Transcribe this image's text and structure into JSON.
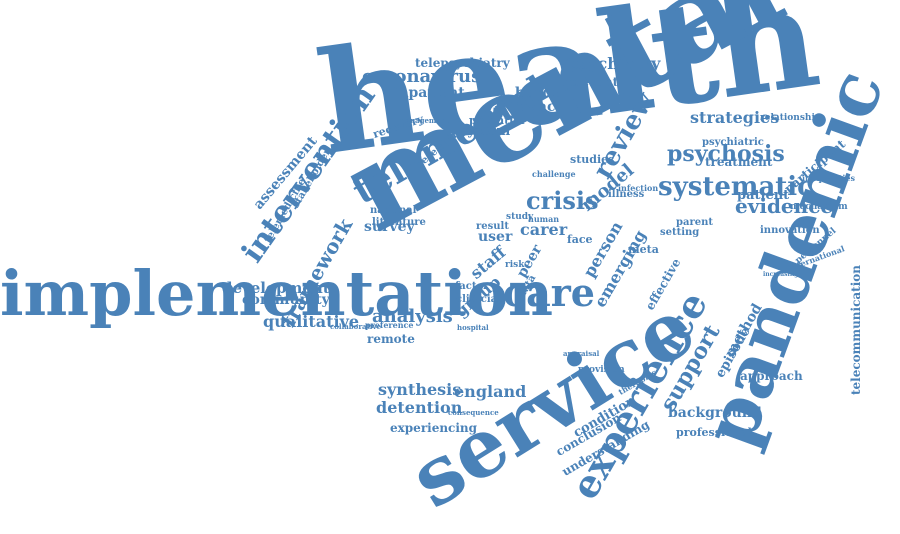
{
  "color": "#4a82b8",
  "words": [
    "health",
    "mental",
    "implementation",
    "service",
    "pandemic",
    "care",
    "systematic",
    "telemental",
    "intervention",
    "psychosis",
    "experience",
    "crisis",
    "evidence",
    "coronavirus",
    "psychiatry",
    "review",
    "support",
    "strategies",
    "framework",
    "development",
    "qualitative",
    "analysis",
    "synthesis",
    "england",
    "detention",
    "experiencing",
    "community",
    "remote",
    "telepsychiatry",
    "inpatient",
    "burden",
    "relevant",
    "impact",
    "potential",
    "system",
    "recovery",
    "research",
    "treatment",
    "participant",
    "telecommunication",
    "patient",
    "mechanism",
    "innovation",
    "personnel",
    "approach",
    "method",
    "episode",
    "background",
    "professional",
    "condition",
    "conclusion",
    "understanding",
    "emerging",
    "effective",
    "peer",
    "carer",
    "person",
    "meta",
    "user",
    "staff",
    "group",
    "factor",
    "clinician",
    "survey",
    "national",
    "literature",
    "assessment",
    "telemedicine",
    "stakeholder",
    "relationship",
    "management",
    "psychiatric",
    "inequalities",
    "studies",
    "illness",
    "infection",
    "model",
    "data",
    "risk",
    "face",
    "setting",
    "parent",
    "international",
    "result",
    "study",
    "human",
    "challenge",
    "preference",
    "collaborative",
    "hospital",
    "provision",
    "appraisal",
    "therapies",
    "consequence",
    "increasing",
    "catchment"
  ]
}
